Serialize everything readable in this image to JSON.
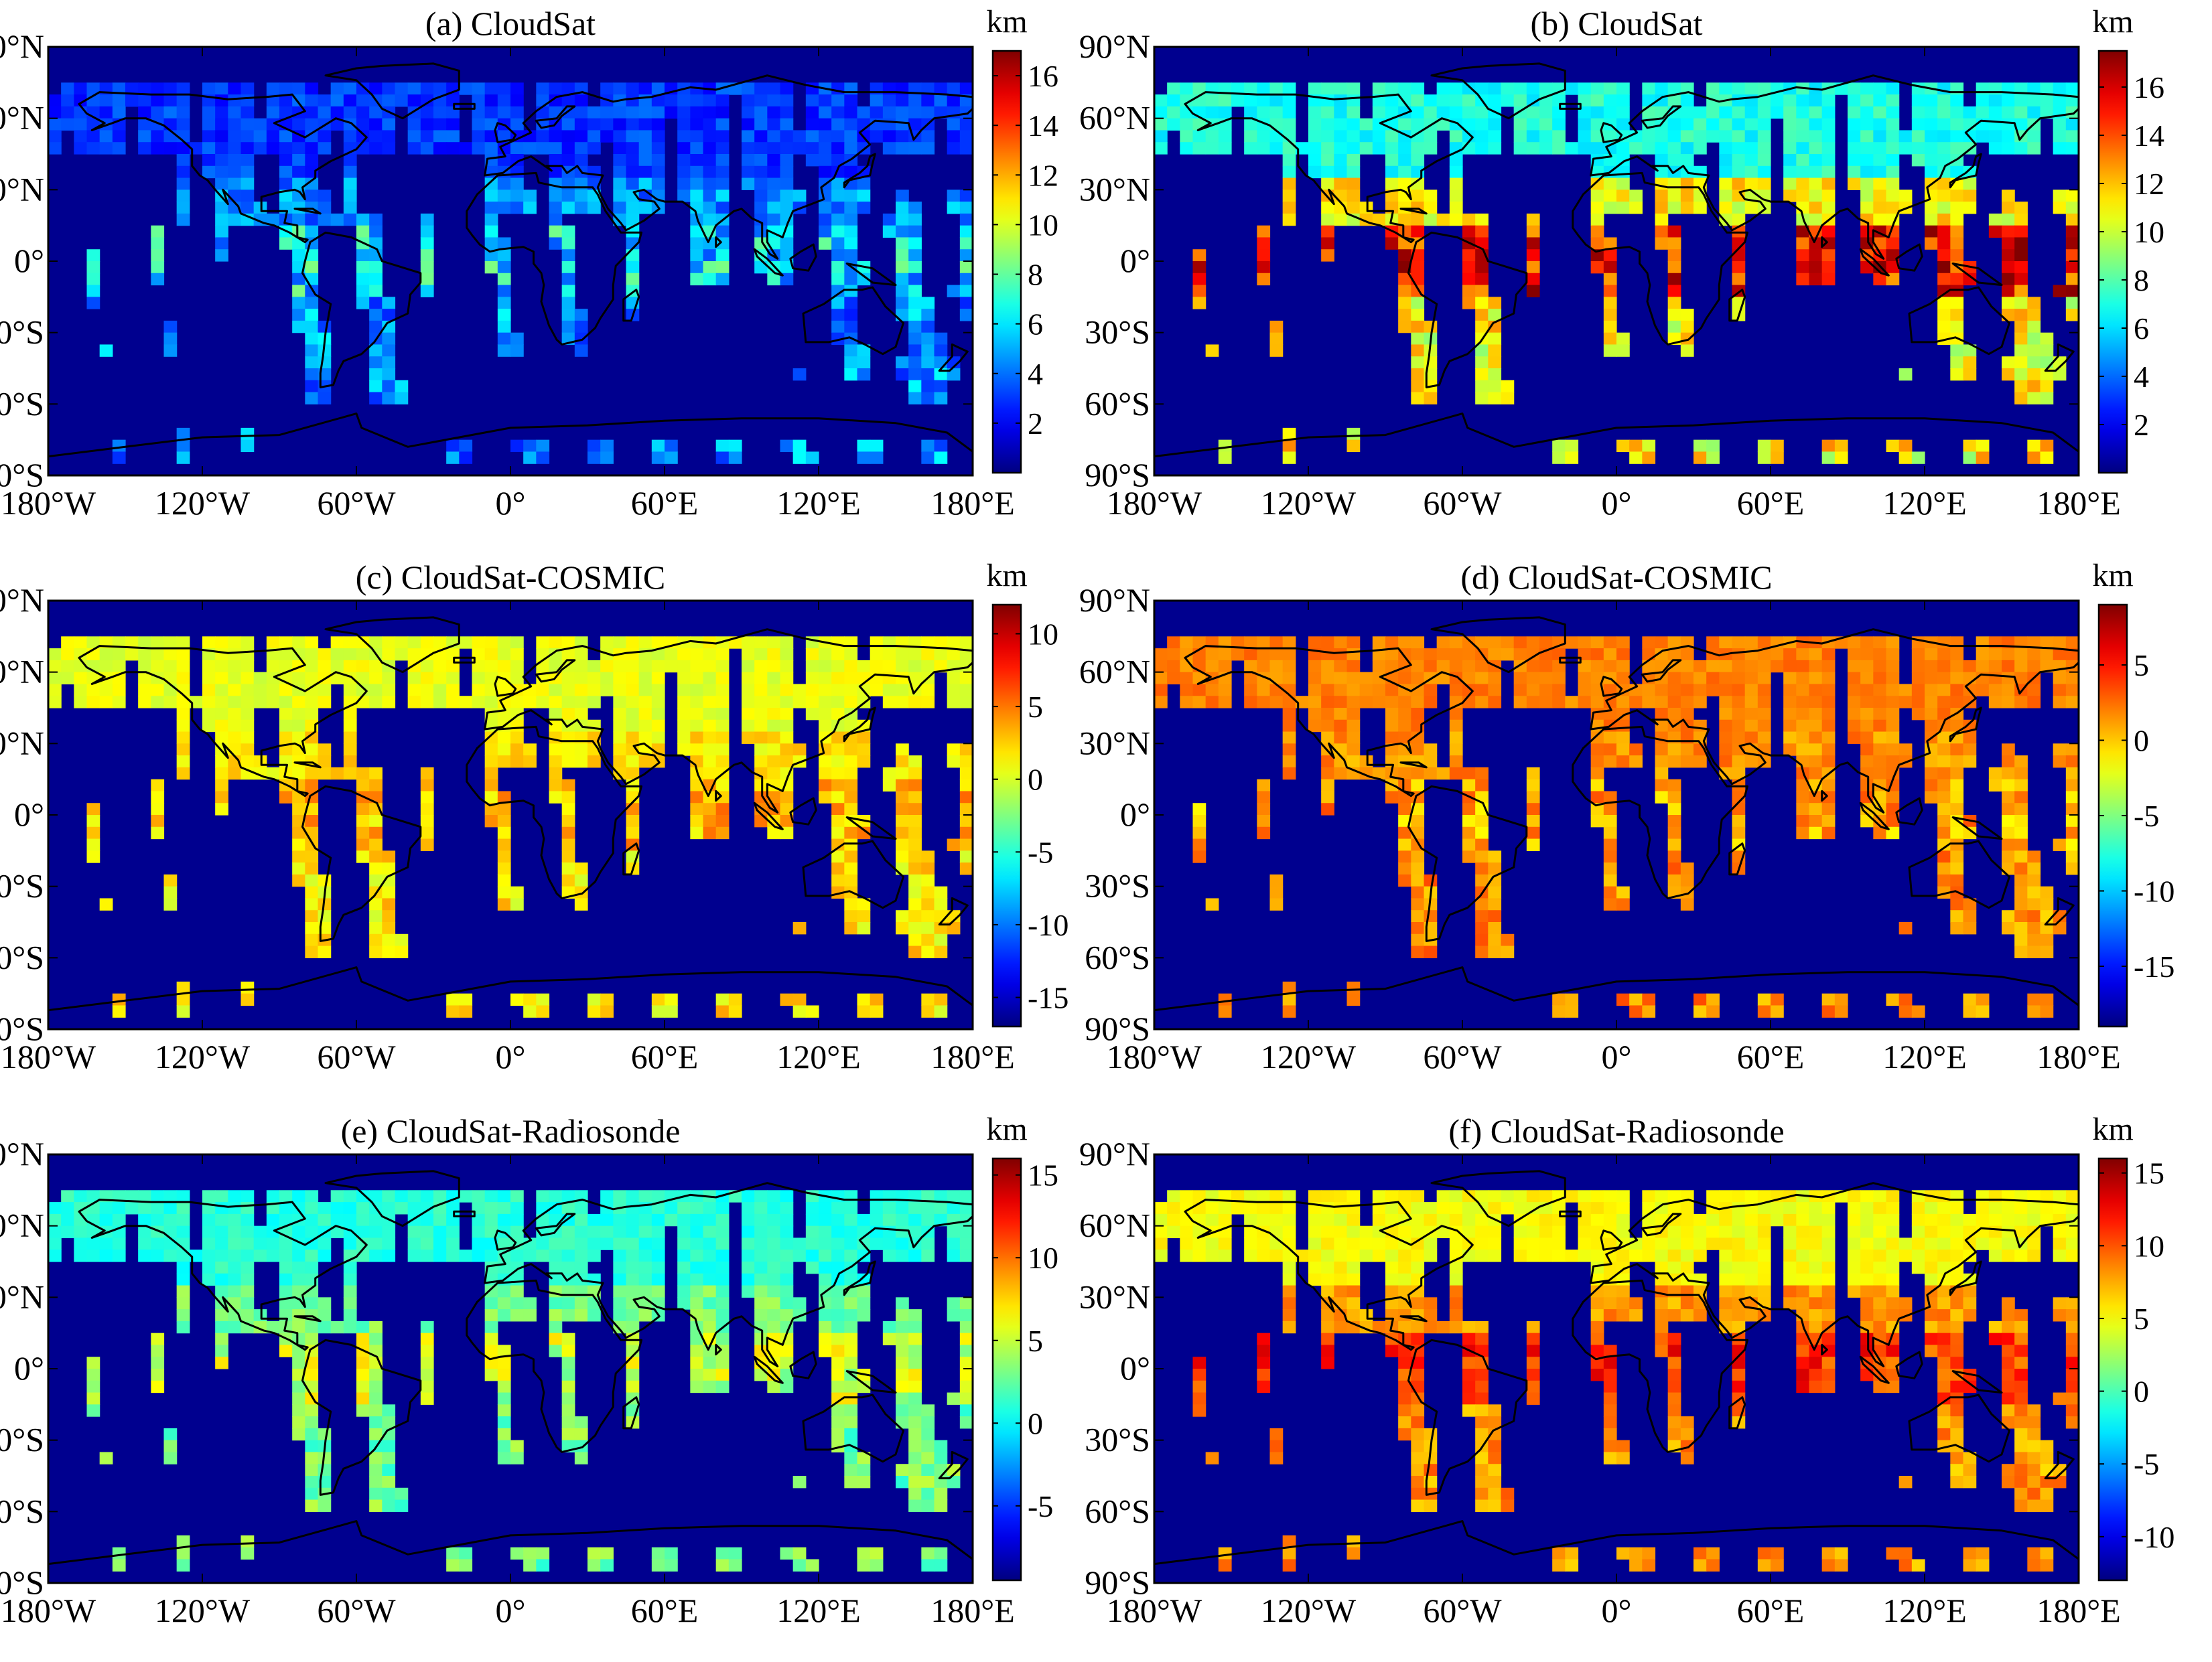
{
  "colormap": "jet",
  "land_background_color": "#00008f",
  "coastline_color": "#000000",
  "x_ticks": [
    "180°W",
    "120°W",
    "60°W",
    "0°",
    "60°E",
    "120°E",
    "180°E"
  ],
  "y_ticks": [
    "90°N",
    "60°N",
    "30°N",
    "0°",
    "30°S",
    "60°S",
    "90°S"
  ],
  "chart_data": [
    {
      "id": "a",
      "type": "heatmap",
      "title": "(a) CloudSat",
      "colorbar_unit": "km",
      "colorbar_range": [
        0,
        17
      ],
      "colorbar_ticks": [
        "16",
        "14",
        "12",
        "10",
        "8",
        "6",
        "4",
        "2"
      ],
      "colorbar_tick_values": [
        16,
        14,
        12,
        10,
        8,
        6,
        4,
        2
      ],
      "grid_resolution_deg": 5,
      "xlim": [
        -180,
        180
      ],
      "ylim": [
        -90,
        90
      ],
      "field_description_values": {
        "northern_land": 3,
        "tropics": 6,
        "ocean_background": 0
      }
    },
    {
      "id": "b",
      "type": "heatmap",
      "title": "(b) CloudSat",
      "colorbar_unit": "km",
      "colorbar_range": [
        0,
        17.5
      ],
      "colorbar_ticks": [
        "16",
        "14",
        "12",
        "10",
        "8",
        "6",
        "4",
        "2"
      ],
      "colorbar_tick_values": [
        16,
        14,
        12,
        10,
        8,
        6,
        4,
        2
      ],
      "grid_resolution_deg": 5,
      "xlim": [
        -180,
        180
      ],
      "ylim": [
        -90,
        90
      ],
      "field_description_values": {
        "northern_land": 7,
        "tropics": 15,
        "ocean_background": 0
      }
    },
    {
      "id": "c",
      "type": "heatmap",
      "title": "(c) CloudSat-COSMIC",
      "colorbar_unit": "km",
      "colorbar_range": [
        -17,
        12
      ],
      "colorbar_ticks": [
        "10",
        "5",
        "0",
        "-5",
        "-10",
        "-15"
      ],
      "colorbar_tick_values": [
        10,
        5,
        0,
        -5,
        -10,
        -15
      ],
      "grid_resolution_deg": 5,
      "xlim": [
        -180,
        180
      ],
      "ylim": [
        -90,
        90
      ],
      "field_description_values": {
        "northern_land": 0.5,
        "tropics": 3,
        "ocean_background": -17
      }
    },
    {
      "id": "d",
      "type": "heatmap",
      "title": "(d) CloudSat-COSMIC",
      "colorbar_unit": "km",
      "colorbar_range": [
        -19,
        9
      ],
      "colorbar_ticks": [
        "5",
        "0",
        "-5",
        "-10",
        "-15"
      ],
      "colorbar_tick_values": [
        5,
        0,
        -5,
        -10,
        -15
      ],
      "grid_resolution_deg": 5,
      "xlim": [
        -180,
        180
      ],
      "ylim": [
        -90,
        90
      ],
      "field_description_values": {
        "northern_land": 2,
        "tropics": 1,
        "ocean_background": -19
      }
    },
    {
      "id": "e",
      "type": "heatmap",
      "title": "(e) CloudSat-Radiosonde",
      "colorbar_unit": "km",
      "colorbar_range": [
        -9.5,
        16
      ],
      "colorbar_ticks": [
        "15",
        "10",
        "5",
        "0",
        "-5"
      ],
      "colorbar_tick_values": [
        15,
        10,
        5,
        0,
        -5
      ],
      "grid_resolution_deg": 5,
      "xlim": [
        -180,
        180
      ],
      "ylim": [
        -90,
        90
      ],
      "field_description_values": {
        "northern_land": 1,
        "tropics": 5,
        "ocean_background": -9.5
      }
    },
    {
      "id": "f",
      "type": "heatmap",
      "title": "(f) CloudSat-Radiosonde",
      "colorbar_unit": "km",
      "colorbar_range": [
        -13,
        16
      ],
      "colorbar_ticks": [
        "15",
        "10",
        "5",
        "0",
        "-5",
        "-10"
      ],
      "colorbar_tick_values": [
        15,
        10,
        5,
        0,
        -5,
        -10
      ],
      "grid_resolution_deg": 5,
      "xlim": [
        -180,
        180
      ],
      "ylim": [
        -90,
        90
      ],
      "field_description_values": {
        "northern_land": 5,
        "tropics": 11,
        "ocean_background": -13
      }
    }
  ]
}
